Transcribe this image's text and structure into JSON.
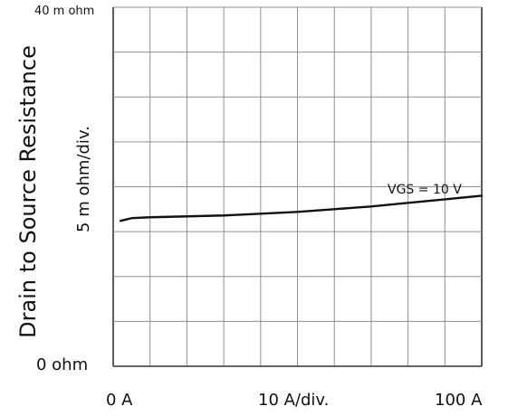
{
  "chart_data": {
    "type": "line",
    "title": "",
    "xlabel": "",
    "ylabel": "Drain to Source Resistance",
    "y_scale_label": "5 m ohm/div.",
    "x_tick_labels": [
      "0  A",
      "10  A/div.",
      "100  A"
    ],
    "y_tick_labels": [
      "40 m ohm",
      "0  ohm"
    ],
    "xlim": [
      0,
      100
    ],
    "ylim": [
      0,
      40
    ],
    "grid": true,
    "series": [
      {
        "name": "VGS = 10 V",
        "x": [
          2,
          5,
          10,
          20,
          30,
          40,
          50,
          60,
          70,
          80,
          90,
          100
        ],
        "y": [
          16.2,
          16.5,
          16.6,
          16.7,
          16.8,
          17.0,
          17.2,
          17.5,
          17.8,
          18.2,
          18.6,
          19.0
        ]
      }
    ]
  }
}
